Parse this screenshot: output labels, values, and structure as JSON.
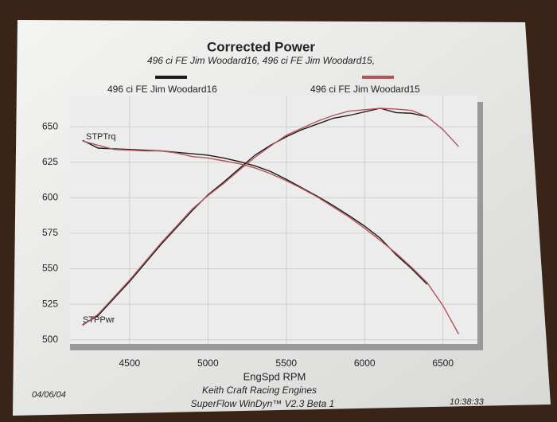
{
  "chart_data": {
    "type": "line",
    "title": "Corrected Power",
    "subtitle": "496 ci FE Jim Woodard16, 496 ci FE Jim Woodard15,",
    "x_label": "EngSpd  RPM",
    "footer": [
      "Keith Craft Racing Engines",
      "SuperFlow WinDyn™ V2.3 Beta 1"
    ],
    "date": "04/06/04",
    "time": "10:38:33",
    "annotations": [
      "STPTrq",
      "STPPwr"
    ],
    "x": [
      4200,
      4300,
      4400,
      4500,
      4600,
      4700,
      4800,
      4900,
      5000,
      5100,
      5200,
      5300,
      5400,
      5500,
      5600,
      5700,
      5800,
      5900,
      6000,
      6100,
      6200,
      6300,
      6400,
      6500,
      6600
    ],
    "series": [
      {
        "name": "496 ci FE Jim Woodard16",
        "color": "#1a1a1a",
        "torque": [
          640.5,
          635,
          634.5,
          634,
          633.5,
          633,
          632,
          631,
          630,
          628,
          625.5,
          622.5,
          618.5,
          613,
          607,
          601,
          594.5,
          587.5,
          580,
          571.5,
          560,
          550,
          539,
          null,
          null
        ],
        "power": [
          510.5,
          517,
          529,
          541,
          554,
          567,
          579,
          591,
          602,
          611,
          620.5,
          630,
          637,
          643,
          648,
          652,
          656,
          658,
          660.5,
          663,
          660,
          659.5,
          657,
          null,
          null
        ]
      },
      {
        "name": "496 ci FE Jim Woodard15",
        "color": "#b5545a",
        "torque": [
          640,
          637,
          634,
          633.5,
          633,
          633,
          631.5,
          629,
          628,
          626,
          624,
          621,
          617,
          612,
          606.5,
          600.5,
          593.5,
          586.5,
          578.5,
          570,
          561,
          551,
          540,
          524,
          504
        ],
        "power": [
          510,
          518,
          530,
          542,
          555,
          568,
          580,
          592,
          601.5,
          610,
          619.5,
          628.5,
          636.5,
          644,
          649,
          654,
          658,
          661,
          662,
          663,
          662.5,
          661.5,
          657,
          648,
          636
        ]
      }
    ],
    "xlim": [
      4120,
      6720
    ],
    "ylim": [
      497,
      672
    ],
    "xticks": [
      4500,
      5000,
      5500,
      6000,
      6500
    ],
    "yticks": [
      500,
      525,
      550,
      575,
      600,
      625,
      650
    ],
    "grid": true
  }
}
